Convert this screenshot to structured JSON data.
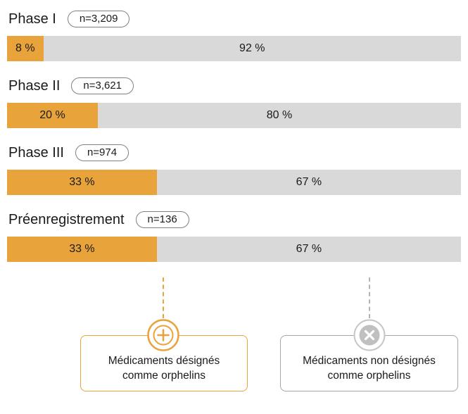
{
  "chart_data": {
    "type": "bar",
    "orientation": "horizontal-stacked",
    "categories": [
      "Phase I",
      "Phase II",
      "Phase III",
      "Préenregistrement"
    ],
    "n_values": [
      3209,
      3621,
      974,
      136
    ],
    "series": [
      {
        "name": "Médicaments désignés comme orphelins",
        "values": [
          8,
          20,
          33,
          33
        ]
      },
      {
        "name": "Médicaments non désignés comme orphelins",
        "values": [
          92,
          80,
          67,
          67
        ]
      }
    ],
    "rows": [
      {
        "label": "Phase I",
        "n_label": "n=3,209",
        "orphan_pct": 8,
        "orphan_label": "8 %",
        "non_orphan_pct": 92,
        "non_orphan_label": "92 %"
      },
      {
        "label": "Phase II",
        "n_label": "n=3,621",
        "orphan_pct": 20,
        "orphan_label": "20 %",
        "non_orphan_pct": 80,
        "non_orphan_label": "80 %"
      },
      {
        "label": "Phase III",
        "n_label": "n=974",
        "orphan_pct": 33,
        "orphan_label": "33 %",
        "non_orphan_pct": 67,
        "non_orphan_label": "67 %"
      },
      {
        "label": "Préenregistrement",
        "n_label": "n=136",
        "orphan_pct": 33,
        "orphan_label": "33 %",
        "non_orphan_pct": 67,
        "non_orphan_label": "67 %"
      }
    ],
    "legend_position": "bottom"
  },
  "legend": {
    "orphan": {
      "icon": "plus-circle-icon",
      "label": "Médicaments désignés\ncomme orphelins"
    },
    "non_orphan": {
      "icon": "x-circle-icon",
      "label": "Médicaments non désignés\ncomme orphelins"
    }
  },
  "colors": {
    "accent": "#E9A33B",
    "bar-gray": "#D9D9D9",
    "gray-icon": "#C0C0C0",
    "gray-border": "#A6A6A6",
    "gray-dash": "#B3B3B3",
    "pill-border": "#808080",
    "text": "#1A1A1A"
  }
}
